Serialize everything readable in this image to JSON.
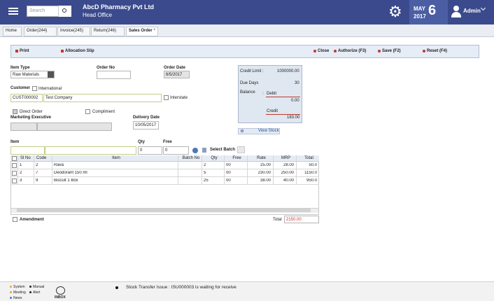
{
  "header": {
    "search_placeholder": "Search",
    "company": "AbcD Pharmacy Pvt Ltd",
    "branch": "Head Office",
    "month": "MAY",
    "year": "2017",
    "day": "6",
    "user": "Admin"
  },
  "tabs": [
    "Home",
    "Order(244)",
    "Invoice(245)",
    "Return(246)",
    "Sales Order"
  ],
  "toolbar": {
    "left": [
      "Print",
      "Allocation Slip"
    ],
    "right": [
      "Close",
      "Authorize (F3)",
      "Save (F2)",
      "Reset (F4)"
    ]
  },
  "form": {
    "item_type_label": "Item Type",
    "item_type": "Raw Materials",
    "order_no_label": "Order No",
    "order_date_label": "Order Date",
    "order_date": "6/5/2017",
    "customer_label": "Customer",
    "international": "International",
    "customer_code": "CUST000002",
    "customer_name": "Test Company",
    "interstate": "Interstate",
    "direct_order": "Direct Order",
    "compliment": "Compliment",
    "marketing_executive": "Marketing Executive",
    "delivery_date_label": "Delivery Date",
    "delivery_date": "10/05/2017",
    "view_stock": "View Stock",
    "item_label": "Item",
    "qty_label": "Qty",
    "free_label": "Free",
    "qty": "0",
    "free": "0",
    "select_batch": "Select Batch",
    "amendment": "Amendment",
    "total_label": "Total",
    "total": "2150.00"
  },
  "credit": {
    "limit_label": "Credit Limit :",
    "limit": "1000000.00",
    "due_days_label": "Due Days",
    "due_days": "30",
    "balance_label": "Balance",
    "colon": ":",
    "debit_label": "Debit",
    "debit": "0.00",
    "credit_label": "Credit",
    "credit": "183.00"
  },
  "table": {
    "columns": [
      "Sl No",
      "Code",
      "Item",
      "Batch No",
      "Qty",
      "Free",
      "Rate",
      "MRP",
      "Total"
    ],
    "rows": [
      [
        "1",
        "2",
        "Rava",
        "",
        "2",
        "00",
        "25.00",
        "28.00",
        "50.0"
      ],
      [
        "2",
        "7",
        "Deodorant 150 ml",
        "",
        "5",
        "00",
        "230.00",
        "250.00",
        "1150.0"
      ],
      [
        "3",
        "9",
        "Biscuit 1 Box",
        "",
        "25",
        "00",
        "38.00",
        "40.00",
        "950.0"
      ]
    ]
  },
  "footer": {
    "legend": [
      "System",
      "Manual",
      "Meeting",
      "Alert",
      "News"
    ],
    "inbox": "INBOX",
    "message": "Stock Transfer Issue : ISU000003 is waiting for receive"
  }
}
